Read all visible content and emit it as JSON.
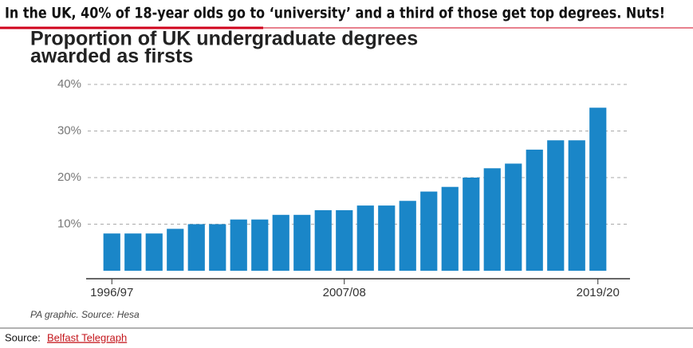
{
  "header": {
    "text": "In the UK, 40% of 18-year olds go to ‘university’ and a third of those get top degrees. Nuts!"
  },
  "chart_data": {
    "type": "bar",
    "title": [
      "Proportion of UK undergraduate degrees",
      "awarded as firsts"
    ],
    "categories": [
      "1996/97",
      null,
      null,
      null,
      null,
      null,
      null,
      null,
      null,
      null,
      null,
      "2007/08",
      null,
      null,
      null,
      null,
      null,
      null,
      null,
      null,
      null,
      null,
      null,
      "2019/20"
    ],
    "values": [
      8,
      8,
      8,
      9,
      10,
      10,
      11,
      11,
      12,
      12,
      13,
      13,
      14,
      14,
      15,
      17,
      18,
      20,
      22,
      23,
      26,
      28,
      28,
      35
    ],
    "color": "#1a86c8",
    "ylim": [
      0,
      40
    ],
    "yticks": [
      {
        "value": 10,
        "label": "10%"
      },
      {
        "value": 20,
        "label": "20%"
      },
      {
        "value": 30,
        "label": "30%"
      },
      {
        "value": 40,
        "label": "40%"
      }
    ],
    "grid": true,
    "note": "PA graphic. Source: Hesa"
  },
  "footer": {
    "source_label": "Source:",
    "source_link": "Belfast Telegraph"
  }
}
